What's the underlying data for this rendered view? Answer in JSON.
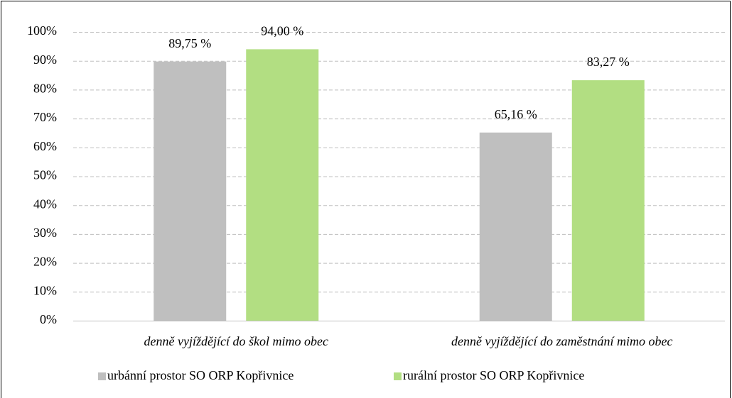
{
  "chart_data": {
    "type": "bar",
    "categories": [
      "denně vyjíždějící do škol mimo obec",
      "denně vyjíždějící do zaměstnání mimo obec"
    ],
    "series": [
      {
        "name": "urbánní prostor SO ORP Kopřivnice",
        "color": "#bfbfbf",
        "values": [
          89.75,
          65.16
        ],
        "value_labels": [
          "89,75 %",
          "65,16 %"
        ]
      },
      {
        "name": "rurální prostor SO ORP Kopřivnice",
        "color": "#b2de82",
        "values": [
          94.0,
          83.27
        ],
        "value_labels": [
          "94,00 %",
          "83,27 %"
        ]
      }
    ],
    "ylim": [
      0,
      100
    ],
    "yticks": [
      {
        "value": 0,
        "label": "0%"
      },
      {
        "value": 10,
        "label": "10%"
      },
      {
        "value": 20,
        "label": "20%"
      },
      {
        "value": 30,
        "label": "30%"
      },
      {
        "value": 40,
        "label": "40%"
      },
      {
        "value": 50,
        "label": "50%"
      },
      {
        "value": 60,
        "label": "60%"
      },
      {
        "value": 70,
        "label": "70%"
      },
      {
        "value": 80,
        "label": "80%"
      },
      {
        "value": 90,
        "label": "90%"
      },
      {
        "value": 100,
        "label": "100%"
      }
    ],
    "grid": true,
    "legend": "bottom"
  }
}
